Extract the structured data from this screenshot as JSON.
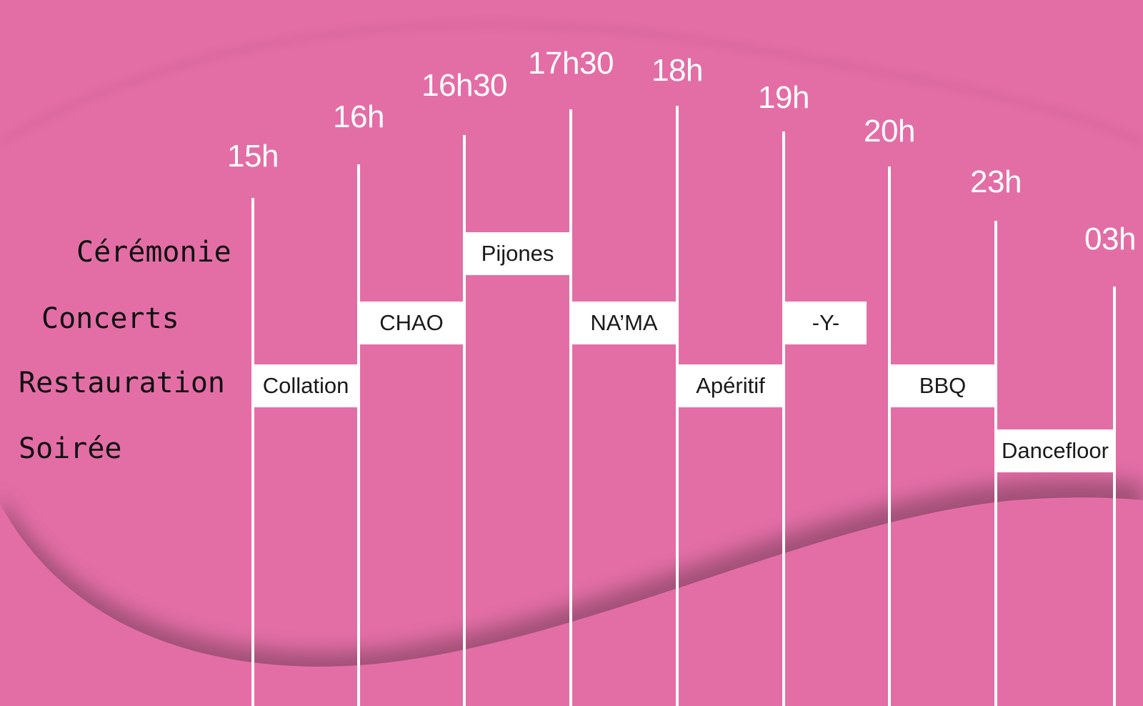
{
  "colors": {
    "background": "#e36ea6",
    "wave": "#a85a80",
    "line": "#ffffff",
    "box": "#ffffff",
    "category_text": "#111111"
  },
  "times": [
    "15h",
    "16h",
    "16h30",
    "17h30",
    "18h",
    "19h",
    "20h",
    "23h",
    "03h"
  ],
  "categories": [
    "Cérémonie",
    "Concerts",
    "Restauration",
    "Soirée"
  ],
  "events": [
    {
      "label": "Pijones",
      "category": "Cérémonie",
      "start": "16h30",
      "end": "17h30"
    },
    {
      "label": "CHAO",
      "category": "Concerts",
      "start": "16h",
      "end": "16h30"
    },
    {
      "label": "NA’MA",
      "category": "Concerts",
      "start": "17h30",
      "end": "18h"
    },
    {
      "label": "-Y-",
      "category": "Concerts",
      "start": "19h",
      "end": "19h"
    },
    {
      "label": "Collation",
      "category": "Restauration",
      "start": "15h",
      "end": "16h"
    },
    {
      "label": "Apéritif",
      "category": "Restauration",
      "start": "18h",
      "end": "19h"
    },
    {
      "label": "BBQ",
      "category": "Restauration",
      "start": "20h",
      "end": "23h"
    },
    {
      "label": "Dancefloor",
      "category": "Soirée",
      "start": "23h",
      "end": "03h"
    }
  ]
}
